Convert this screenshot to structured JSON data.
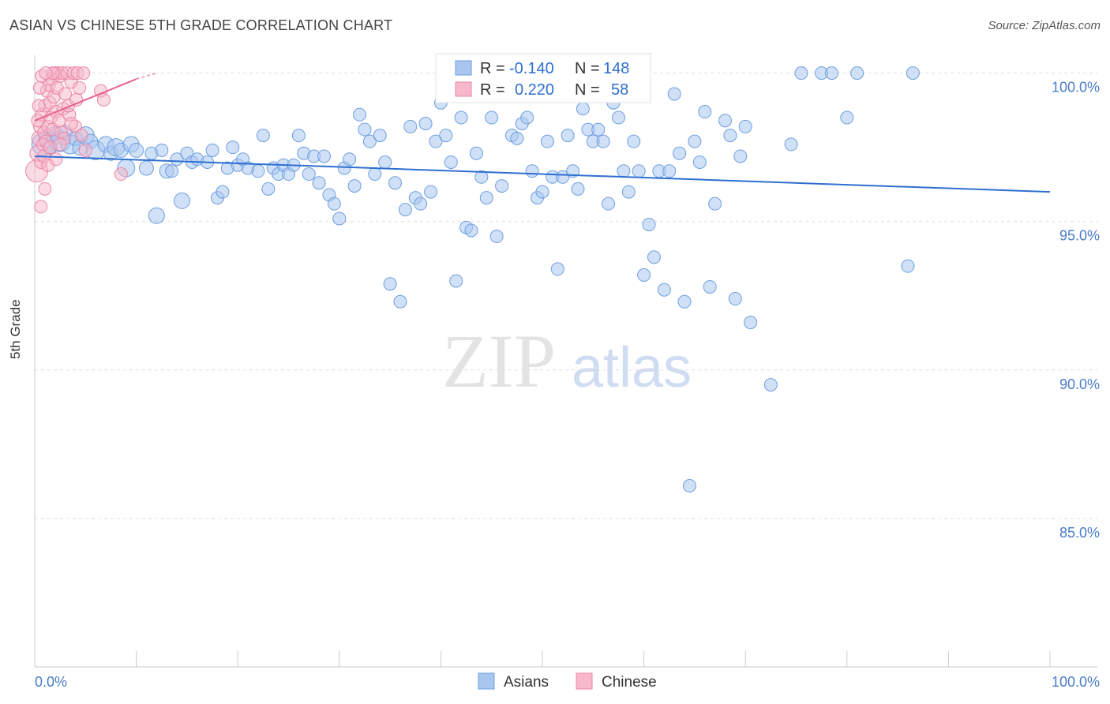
{
  "title": "ASIAN VS CHINESE 5TH GRADE CORRELATION CHART",
  "source": "Source: ZipAtlas.com",
  "watermark": {
    "zip": "ZIP",
    "atlas": "atlas"
  },
  "colors": {
    "asians_fill": "#a9c6ee",
    "asians_stroke": "#6f9fe0",
    "asians_line": "#2f6fd0",
    "chinese_fill": "#f6b8ca",
    "chinese_stroke": "#ec86a6",
    "chinese_line": "#e8628c",
    "tick_label": "#4a7cc9",
    "grid": "#dddddd"
  },
  "legend": {
    "asians": {
      "r_label": "R =",
      "r_value": "-0.140",
      "n_label": "N =",
      "n_value": "148"
    },
    "chinese": {
      "r_label": "R =",
      "r_value": "0.220",
      "n_label": "N =",
      "n_value": "58"
    }
  },
  "chart_data": {
    "type": "scatter",
    "title": "ASIAN VS CHINESE 5TH GRADE CORRELATION CHART",
    "xlabel": "",
    "ylabel": "5th Grade",
    "xlim": [
      0,
      100
    ],
    "ylim": [
      80.0,
      101.0
    ],
    "x_tick_labels": [
      "0.0%",
      "100.0%"
    ],
    "y_ticks": [
      85.0,
      90.0,
      95.0,
      100.0
    ],
    "y_tick_labels": [
      "85.0%",
      "90.0%",
      "95.0%",
      "100.0%"
    ],
    "grid": "horizontal dashed",
    "legend_position": "top-center",
    "series": [
      {
        "name": "Asians",
        "r": -0.14,
        "n": 148,
        "trend": {
          "x0": 0,
          "y0": 97.2,
          "x1": 100,
          "y1": 96.0
        },
        "points": [
          [
            0.8,
            97.6,
            14
          ],
          [
            1.2,
            97.8,
            10
          ],
          [
            1.5,
            97.5,
            9
          ],
          [
            2.0,
            97.9,
            11
          ],
          [
            2.5,
            97.7,
            13
          ],
          [
            3.0,
            98.0,
            9
          ],
          [
            3.5,
            97.6,
            12
          ],
          [
            4.0,
            97.8,
            9
          ],
          [
            4.5,
            97.5,
            10
          ],
          [
            5.0,
            97.9,
            11
          ],
          [
            5.5,
            97.7,
            9
          ],
          [
            6.0,
            97.4,
            12
          ],
          [
            7.0,
            97.6,
            10
          ],
          [
            7.5,
            97.3,
            9
          ],
          [
            8.0,
            97.5,
            11
          ],
          [
            8.5,
            97.4,
            9
          ],
          [
            9.0,
            96.8,
            11
          ],
          [
            9.5,
            97.6,
            10
          ],
          [
            10.0,
            97.4,
            9
          ],
          [
            11.0,
            96.8,
            9
          ],
          [
            11.5,
            97.3,
            8
          ],
          [
            12.0,
            95.2,
            10
          ],
          [
            12.5,
            97.4,
            8
          ],
          [
            13.0,
            96.7,
            9
          ],
          [
            13.5,
            96.7,
            8
          ],
          [
            14.0,
            97.1,
            8
          ],
          [
            14.5,
            95.7,
            10
          ],
          [
            15.0,
            97.3,
            8
          ],
          [
            15.5,
            97.0,
            8
          ],
          [
            16.0,
            97.1,
            8
          ],
          [
            17.0,
            97.0,
            8
          ],
          [
            17.5,
            97.4,
            8
          ],
          [
            18.0,
            95.8,
            8
          ],
          [
            18.5,
            96.0,
            8
          ],
          [
            19.0,
            96.8,
            8
          ],
          [
            19.5,
            97.5,
            8
          ],
          [
            20.0,
            96.9,
            8
          ],
          [
            20.5,
            97.1,
            8
          ],
          [
            21.0,
            96.8,
            8
          ],
          [
            22.0,
            96.7,
            8
          ],
          [
            22.5,
            97.9,
            8
          ],
          [
            23.0,
            96.1,
            8
          ],
          [
            23.5,
            96.8,
            8
          ],
          [
            24.0,
            96.6,
            8
          ],
          [
            24.5,
            96.9,
            8
          ],
          [
            25.0,
            96.6,
            8
          ],
          [
            25.5,
            96.9,
            8
          ],
          [
            26.0,
            97.9,
            8
          ],
          [
            26.5,
            97.3,
            8
          ],
          [
            27.0,
            96.6,
            8
          ],
          [
            27.5,
            97.2,
            8
          ],
          [
            28.0,
            96.3,
            8
          ],
          [
            28.5,
            97.2,
            8
          ],
          [
            29.0,
            95.9,
            8
          ],
          [
            29.5,
            95.6,
            8
          ],
          [
            30.0,
            95.1,
            8
          ],
          [
            30.5,
            96.8,
            8
          ],
          [
            31.0,
            97.1,
            8
          ],
          [
            31.5,
            96.2,
            8
          ],
          [
            32.0,
            98.6,
            8
          ],
          [
            32.5,
            98.1,
            8
          ],
          [
            33.0,
            97.7,
            8
          ],
          [
            33.5,
            96.6,
            8
          ],
          [
            34.0,
            97.9,
            8
          ],
          [
            34.5,
            97.0,
            8
          ],
          [
            35.0,
            92.9,
            8
          ],
          [
            35.5,
            96.3,
            8
          ],
          [
            36.0,
            92.3,
            8
          ],
          [
            36.5,
            95.4,
            8
          ],
          [
            37.0,
            98.2,
            8
          ],
          [
            37.5,
            95.8,
            8
          ],
          [
            38.0,
            95.6,
            8
          ],
          [
            38.5,
            98.3,
            8
          ],
          [
            39.0,
            96.0,
            8
          ],
          [
            39.5,
            97.7,
            8
          ],
          [
            40.0,
            99.0,
            8
          ],
          [
            40.5,
            97.9,
            8
          ],
          [
            41.0,
            97.0,
            8
          ],
          [
            41.5,
            93.0,
            8
          ],
          [
            42.0,
            98.5,
            8
          ],
          [
            42.5,
            94.8,
            8
          ],
          [
            43.0,
            94.7,
            8
          ],
          [
            43.5,
            97.3,
            8
          ],
          [
            44.0,
            96.5,
            8
          ],
          [
            44.5,
            95.8,
            8
          ],
          [
            45.0,
            98.5,
            8
          ],
          [
            45.5,
            94.5,
            8
          ],
          [
            46.0,
            96.2,
            8
          ],
          [
            46.5,
            99.5,
            8
          ],
          [
            47.0,
            97.9,
            8
          ],
          [
            47.5,
            97.8,
            8
          ],
          [
            48.0,
            98.3,
            8
          ],
          [
            48.5,
            98.5,
            8
          ],
          [
            49.0,
            96.7,
            8
          ],
          [
            49.5,
            95.8,
            8
          ],
          [
            50.0,
            96.0,
            8
          ],
          [
            50.5,
            97.7,
            8
          ],
          [
            51.0,
            96.5,
            8
          ],
          [
            51.5,
            93.4,
            8
          ],
          [
            52.0,
            96.5,
            8
          ],
          [
            52.5,
            97.9,
            8
          ],
          [
            53.0,
            96.7,
            8
          ],
          [
            53.5,
            96.1,
            8
          ],
          [
            54.0,
            98.8,
            8
          ],
          [
            54.5,
            98.1,
            8
          ],
          [
            55.0,
            97.7,
            8
          ],
          [
            55.5,
            98.1,
            8
          ],
          [
            56.0,
            97.7,
            8
          ],
          [
            56.5,
            95.6,
            8
          ],
          [
            57.0,
            99.0,
            8
          ],
          [
            57.5,
            98.5,
            8
          ],
          [
            58.0,
            96.7,
            8
          ],
          [
            58.5,
            96.0,
            8
          ],
          [
            59.0,
            97.7,
            8
          ],
          [
            59.5,
            96.7,
            8
          ],
          [
            60.0,
            93.2,
            8
          ],
          [
            60.5,
            94.9,
            8
          ],
          [
            61.0,
            93.8,
            8
          ],
          [
            61.5,
            96.7,
            8
          ],
          [
            62.0,
            92.7,
            8
          ],
          [
            62.5,
            96.7,
            8
          ],
          [
            63.0,
            99.3,
            8
          ],
          [
            63.5,
            97.3,
            8
          ],
          [
            64.0,
            92.3,
            8
          ],
          [
            64.5,
            86.1,
            8
          ],
          [
            65.0,
            97.7,
            8
          ],
          [
            65.5,
            97.0,
            8
          ],
          [
            66.0,
            98.7,
            8
          ],
          [
            66.5,
            92.8,
            8
          ],
          [
            67.0,
            95.6,
            8
          ],
          [
            68.0,
            98.4,
            8
          ],
          [
            68.5,
            97.9,
            8
          ],
          [
            69.0,
            92.4,
            8
          ],
          [
            69.5,
            97.2,
            8
          ],
          [
            70.0,
            98.2,
            8
          ],
          [
            70.5,
            91.6,
            8
          ],
          [
            72.5,
            89.5,
            8
          ],
          [
            74.5,
            97.6,
            8
          ],
          [
            75.5,
            100.0,
            8
          ],
          [
            77.5,
            100.0,
            8
          ],
          [
            78.5,
            100.0,
            8
          ],
          [
            80.0,
            98.5,
            8
          ],
          [
            81.0,
            100.0,
            8
          ],
          [
            86.0,
            93.5,
            8
          ],
          [
            86.5,
            100.0,
            8
          ]
        ]
      },
      {
        "name": "Chinese",
        "r": 0.22,
        "n": 58,
        "trend": {
          "x0": 0,
          "y0": 98.4,
          "x1": 10,
          "y1": 99.8
        },
        "trend_dashed": {
          "x0": 10,
          "y0": 99.8,
          "x1": 12,
          "y1": 100.0
        },
        "points": [
          [
            0.2,
            96.7,
            14
          ],
          [
            0.3,
            97.3,
            10
          ],
          [
            0.4,
            97.8,
            9
          ],
          [
            0.5,
            98.2,
            8
          ],
          [
            0.6,
            97.0,
            8
          ],
          [
            0.7,
            98.6,
            8
          ],
          [
            0.8,
            97.6,
            8
          ],
          [
            0.9,
            98.0,
            8
          ],
          [
            1.0,
            98.9,
            8
          ],
          [
            1.1,
            97.7,
            8
          ],
          [
            1.2,
            99.4,
            8
          ],
          [
            1.3,
            98.2,
            8
          ],
          [
            1.4,
            99.6,
            8
          ],
          [
            1.5,
            99.0,
            8
          ],
          [
            1.6,
            98.5,
            8
          ],
          [
            1.7,
            99.8,
            8
          ],
          [
            1.8,
            98.1,
            8
          ],
          [
            1.9,
            99.2,
            8
          ],
          [
            2.0,
            100.0,
            8
          ],
          [
            2.1,
            98.7,
            8
          ],
          [
            2.2,
            99.5,
            8
          ],
          [
            2.3,
            100.0,
            8
          ],
          [
            2.4,
            98.4,
            8
          ],
          [
            2.5,
            99.9,
            8
          ],
          [
            2.6,
            98.0,
            8
          ],
          [
            2.7,
            100.0,
            8
          ],
          [
            2.8,
            98.8,
            8
          ],
          [
            3.0,
            99.3,
            8
          ],
          [
            3.2,
            100.0,
            8
          ],
          [
            3.4,
            98.6,
            8
          ],
          [
            3.6,
            99.7,
            8
          ],
          [
            3.8,
            100.0,
            8
          ],
          [
            4.0,
            98.2,
            8
          ],
          [
            4.2,
            100.0,
            8
          ],
          [
            4.4,
            99.5,
            8
          ],
          [
            4.6,
            97.9,
            8
          ],
          [
            4.8,
            100.0,
            8
          ],
          [
            0.6,
            95.5,
            8
          ],
          [
            1.0,
            96.1,
            8
          ],
          [
            8.5,
            96.6,
            8
          ],
          [
            6.5,
            99.4,
            8
          ],
          [
            6.8,
            99.1,
            8
          ],
          [
            0.5,
            99.5,
            8
          ],
          [
            0.9,
            97.2,
            8
          ],
          [
            1.3,
            96.9,
            8
          ],
          [
            2.9,
            97.8,
            8
          ],
          [
            3.3,
            98.9,
            8
          ],
          [
            0.4,
            98.9,
            8
          ],
          [
            1.5,
            97.5,
            8
          ],
          [
            2.1,
            97.1,
            8
          ],
          [
            0.7,
            99.9,
            8
          ],
          [
            1.8,
            100.0,
            8
          ],
          [
            3.6,
            98.3,
            8
          ],
          [
            0.3,
            98.4,
            8
          ],
          [
            1.1,
            100.0,
            8
          ],
          [
            2.5,
            97.6,
            8
          ],
          [
            4.1,
            99.1,
            8
          ],
          [
            5.0,
            97.4,
            8
          ]
        ]
      }
    ]
  }
}
